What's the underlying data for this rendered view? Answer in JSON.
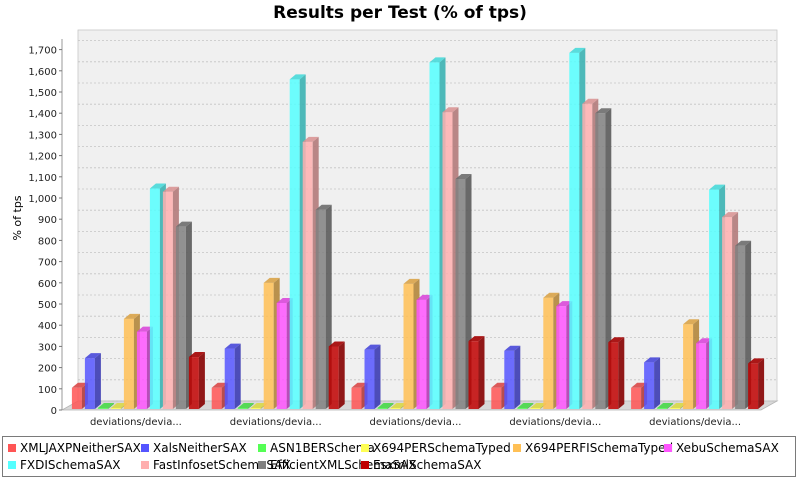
{
  "chart_data": {
    "type": "bar",
    "title": "Results per Test (% of tps)",
    "ylabel": "% of tps",
    "xlabel": "",
    "ylim": [
      0,
      1750
    ],
    "yticks": [
      0,
      100,
      200,
      300,
      400,
      500,
      600,
      700,
      800,
      900,
      1000,
      1100,
      1200,
      1300,
      1400,
      1500,
      1600,
      1700
    ],
    "grid": true,
    "legend_position": "bottom",
    "categories": [
      "deviations/devia...",
      "deviations/devia...",
      "deviations/devia...",
      "deviations/devia...",
      "deviations/devia..."
    ],
    "series": [
      {
        "name": "XMLJAXPNeitherSAX",
        "color": "#ff5555",
        "values": [
          100,
          100,
          100,
          100,
          100
        ]
      },
      {
        "name": "XalsNeitherSAX",
        "color": "#5555ff",
        "values": [
          240,
          285,
          280,
          275,
          220
        ]
      },
      {
        "name": "ASN1BERSchema",
        "color": "#55ff55",
        "values": [
          5,
          5,
          5,
          5,
          5
        ]
      },
      {
        "name": "X694PERSchemaTyped",
        "color": "#ffff55",
        "values": [
          5,
          5,
          5,
          5,
          5
        ]
      },
      {
        "name": "X694PERFISchemaTyped",
        "color": "#ffc055",
        "values": [
          425,
          595,
          590,
          525,
          400
        ]
      },
      {
        "name": "XebuSchemaSAX",
        "color": "#ff55ff",
        "values": [
          365,
          500,
          515,
          485,
          310
        ]
      },
      {
        "name": "FXDISchemaSAX",
        "color": "#55ffff",
        "values": [
          1040,
          1555,
          1635,
          1680,
          1035
        ]
      },
      {
        "name": "FastInfosetSchemaSAX",
        "color": "#ffafaf",
        "values": [
          1025,
          1260,
          1400,
          1440,
          905
        ]
      },
      {
        "name": "EfficientXMLSchemaSAX",
        "color": "#808080",
        "values": [
          860,
          940,
          1085,
          1395,
          770
        ]
      },
      {
        "name": "EsxmlSchemaSAX",
        "color": "#c00000",
        "values": [
          245,
          295,
          320,
          315,
          215
        ]
      }
    ]
  }
}
